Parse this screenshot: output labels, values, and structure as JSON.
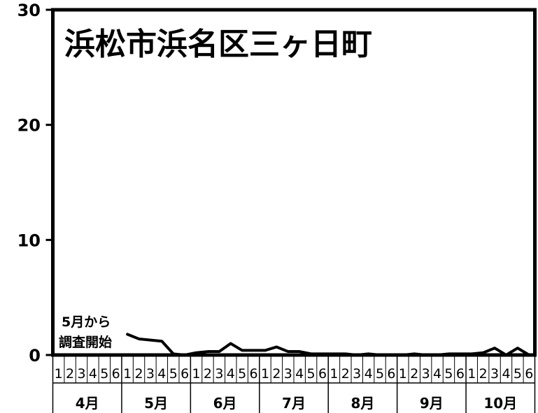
{
  "chart_data": {
    "type": "line",
    "title": "浜松市浜名区三ヶ日町",
    "ylim": [
      0,
      30
    ],
    "yticks": [
      "0",
      "10",
      "20",
      "30"
    ],
    "grid": false,
    "months": [
      "4月",
      "5月",
      "6月",
      "7月",
      "8月",
      "9月",
      "10月"
    ],
    "week_labels": [
      "1",
      "2",
      "3",
      "4",
      "5",
      "6",
      "1",
      "2",
      "3",
      "4",
      "5",
      "6",
      "1",
      "2",
      "3",
      "4",
      "5",
      "6",
      "1",
      "2",
      "3",
      "4",
      "5",
      "6",
      "1",
      "2",
      "3",
      "4",
      "5",
      "6",
      "1",
      "2",
      "3",
      "4",
      "5",
      "6",
      "1",
      "2",
      "3",
      "4",
      "5",
      "6"
    ],
    "annotation": [
      "5月から",
      "調査開始"
    ],
    "series": [
      {
        "values": [
          null,
          null,
          null,
          null,
          null,
          null,
          1.8,
          1.4,
          1.3,
          1.2,
          0.1,
          0.0,
          0.2,
          0.3,
          0.3,
          1.0,
          0.4,
          0.4,
          0.4,
          0.7,
          0.3,
          0.3,
          0.1,
          0.1,
          0.1,
          0.1,
          0.0,
          0.1,
          0.0,
          0.0,
          0.0,
          0.1,
          0.0,
          0.0,
          0.1,
          0.1,
          0.1,
          0.2,
          0.6,
          0.0,
          0.6,
          0.0
        ]
      }
    ]
  }
}
